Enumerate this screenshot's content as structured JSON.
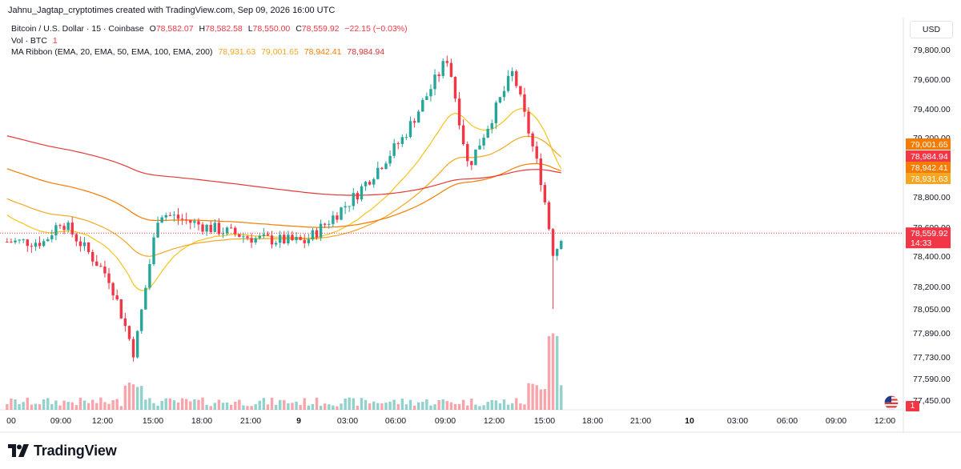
{
  "header": {
    "creator_line": "Jahnu_Jagtap_cryptotimes created with TradingView.com, Sep 09, 2026 16:00 UTC"
  },
  "legend": {
    "symbol": "Bitcoin / U.S. Dollar · 15 · Coinbase",
    "o_label": "O",
    "o_value": "78,582.07",
    "h_label": "H",
    "h_value": "78,582.58",
    "l_label": "L",
    "l_value": "78,550.00",
    "c_label": "C",
    "c_value": "78,559.92",
    "change": "−22.15 (−0.03%)",
    "volume_label": "Vol · BTC",
    "volume_value": "1",
    "ma_label": "MA Ribbon (EMA, 20, EMA, 50, EMA, 100, EMA, 200)",
    "ma_values": [
      "78,931.63",
      "79,001.65",
      "78,942.41",
      "78,984.94"
    ]
  },
  "currency": "USD",
  "price_axis": {
    "ticks": [
      "79,800.00",
      "79,600.00",
      "79,400.00",
      "79,200.00",
      "78,800.00",
      "78,600.00",
      "78,400.00",
      "78,200.00",
      "78,050.00",
      "77,890.00",
      "77,730.00",
      "77,590.00",
      "77,450.00"
    ],
    "badges": [
      {
        "text": "79,001.65",
        "color": "#f57c00"
      },
      {
        "text": "78,984.94",
        "color": "#f23645"
      },
      {
        "text": "78,942.41",
        "color": "#f57c00"
      },
      {
        "text": "78,931.63",
        "color": "#f5a623"
      }
    ],
    "last_price": "78,559.92",
    "countdown": "14:33",
    "volume_badge": "1"
  },
  "time_axis": {
    "labels": [
      "00",
      "09:00",
      "12:00",
      "15:00",
      "18:00",
      "21:00",
      "9",
      "03:00",
      "06:00",
      "09:00",
      "12:00",
      "15:00",
      "18:00",
      "21:00",
      "10",
      "03:00",
      "06:00",
      "09:00",
      "12:00"
    ]
  },
  "footer": {
    "brand": "TradingView"
  },
  "colors": {
    "up": "#26a69a",
    "down": "#f23645",
    "ema20": "#f5c518",
    "ema50": "#f5a623",
    "ema100": "#f57c00",
    "ema200": "#e53935"
  },
  "chart_data": {
    "type": "candlestick",
    "symbol": "BTC/USD",
    "interval": "15",
    "y_ticks": [
      79800,
      79600,
      79400,
      79200,
      78800,
      78600,
      78400,
      78200,
      78050,
      77890,
      77730,
      77590,
      77450
    ],
    "last_price": 78559.92,
    "ohlc_keypoints": [
      {
        "time": "Sep 8 08:00",
        "close": 78500
      },
      {
        "time": "Sep 8 09:00",
        "close": 78650
      },
      {
        "time": "Sep 8 12:00",
        "close": 78250
      },
      {
        "time": "Sep 8 13:30",
        "low": 77700,
        "close": 77750
      },
      {
        "time": "Sep 8 15:00",
        "close": 78700
      },
      {
        "time": "Sep 8 18:00",
        "close": 78600
      },
      {
        "time": "Sep 8 21:00",
        "close": 78520
      },
      {
        "time": "Sep 9 00:00",
        "close": 78500
      },
      {
        "time": "Sep 9 03:00",
        "close": 78800
      },
      {
        "time": "Sep 9 06:00",
        "close": 79200
      },
      {
        "time": "Sep 9 08:45",
        "high": 79760,
        "close": 79750
      },
      {
        "time": "Sep 9 10:00",
        "close": 79000
      },
      {
        "time": "Sep 9 12:45",
        "high": 79680,
        "close": 79650
      },
      {
        "time": "Sep 9 14:30",
        "close": 78900
      },
      {
        "time": "Sep 9 15:15",
        "low": 78050,
        "close": 78400
      },
      {
        "time": "Sep 9 15:45",
        "close": 78559.92
      }
    ],
    "ema": [
      {
        "name": "EMA 20",
        "last": 78931.63
      },
      {
        "name": "EMA 50",
        "last": 79001.65
      },
      {
        "name": "EMA 100",
        "last": 78942.41
      },
      {
        "name": "EMA 200",
        "last": 78984.94
      }
    ]
  }
}
